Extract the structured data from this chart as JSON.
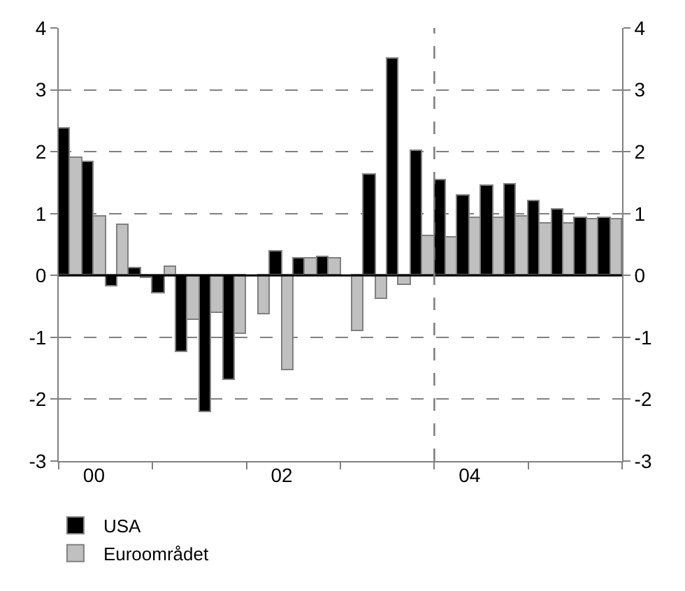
{
  "chart_data": {
    "type": "bar",
    "categories": [
      null,
      "00",
      null,
      null,
      null,
      null,
      null,
      null,
      null,
      "02",
      null,
      null,
      null,
      null,
      null,
      null,
      null,
      "04",
      null,
      null,
      null,
      null,
      null,
      null
    ],
    "series": [
      {
        "name": "USA",
        "color": "#000000",
        "values": [
          2.38,
          1.84,
          -0.17,
          0.11,
          -0.29,
          -1.24,
          -2.21,
          -1.69,
          null,
          0.38,
          0.27,
          0.3,
          null,
          1.63,
          3.5,
          2.02,
          1.55,
          1.29,
          1.44,
          1.46,
          1.19,
          1.06,
          0.93,
          0.94
        ]
      },
      {
        "name": "Euroområdet",
        "color": "#c0c0c0",
        "values": [
          1.89,
          0.95,
          0.81,
          -0.04,
          0.15,
          -0.72,
          -0.6,
          -0.95,
          -0.63,
          -1.54,
          0.28,
          0.27,
          -0.91,
          -0.38,
          -0.16,
          0.64,
          0.61,
          0.92,
          0.93,
          0.95,
          0.83,
          0.85,
          0.9,
          0.9
        ]
      }
    ],
    "ylim": [
      -3,
      4
    ],
    "yticks": [
      -3,
      -2,
      -1,
      0,
      1,
      2,
      3,
      4
    ],
    "y2lim": [
      -3,
      4
    ],
    "y2ticks": [
      -3,
      -2,
      -1,
      0,
      1,
      2,
      3,
      4
    ],
    "grid": "y",
    "legend": "bottom left"
  }
}
